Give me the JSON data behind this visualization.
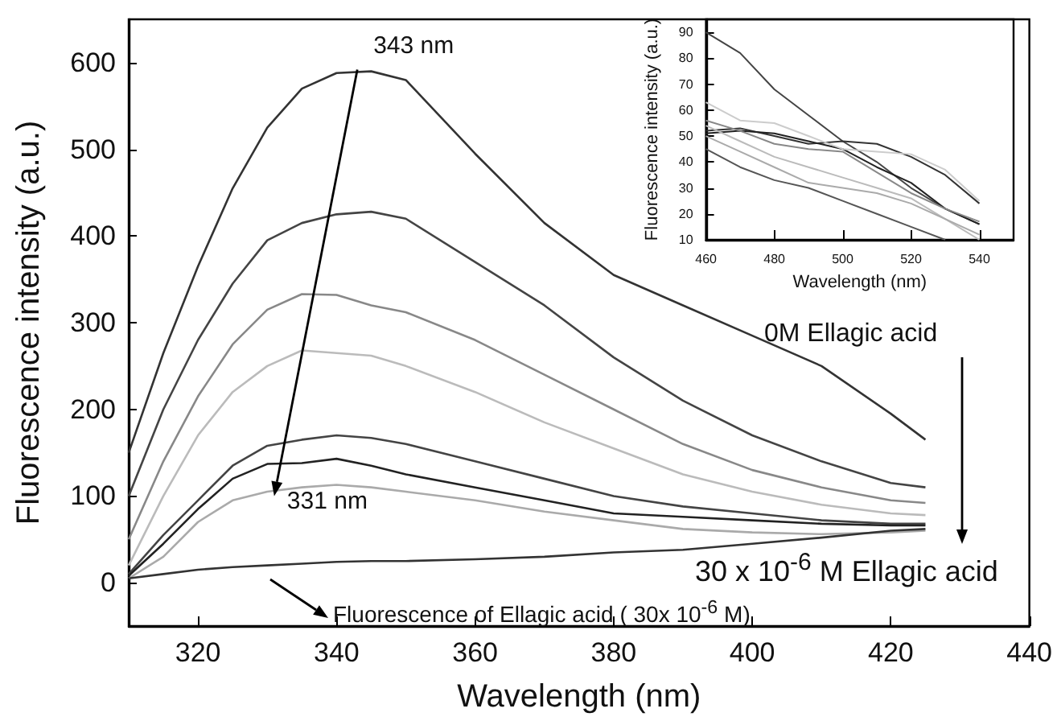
{
  "chart_data": [
    {
      "type": "line",
      "xlabel": "Wavelength (nm)",
      "ylabel": "Fluorescence intensity (a.u.)",
      "x": [
        310,
        315,
        320,
        325,
        330,
        335,
        340,
        345,
        350,
        360,
        370,
        380,
        390,
        400,
        410,
        420,
        425
      ],
      "xlim": [
        310,
        440
      ],
      "xticks": [
        320,
        340,
        360,
        380,
        400,
        420,
        440
      ],
      "ylim": [
        -50,
        650
      ],
      "yticks": [
        0,
        100,
        200,
        300,
        400,
        500,
        600
      ],
      "series": [
        {
          "color": "#333333",
          "values": [
            150,
            265,
            365,
            455,
            525,
            570,
            588,
            590,
            580,
            495,
            415,
            355,
            320,
            285,
            250,
            195,
            165
          ]
        },
        {
          "color": "#444444",
          "values": [
            100,
            200,
            280,
            345,
            395,
            415,
            425,
            428,
            420,
            370,
            320,
            260,
            210,
            170,
            140,
            115,
            110
          ]
        },
        {
          "color": "#888888",
          "values": [
            50,
            140,
            215,
            275,
            315,
            333,
            332,
            320,
            312,
            280,
            240,
            200,
            160,
            130,
            110,
            95,
            92
          ]
        },
        {
          "color": "#bbbbbb",
          "values": [
            20,
            100,
            170,
            220,
            250,
            268,
            265,
            262,
            250,
            220,
            185,
            155,
            125,
            105,
            90,
            80,
            78
          ]
        },
        {
          "color": "#444444",
          "values": [
            10,
            55,
            95,
            135,
            158,
            165,
            170,
            167,
            160,
            140,
            120,
            100,
            88,
            80,
            72,
            68,
            68
          ]
        },
        {
          "color": "#222222",
          "values": [
            8,
            45,
            85,
            120,
            137,
            138,
            143,
            135,
            125,
            110,
            95,
            80,
            76,
            72,
            68,
            66,
            66
          ]
        },
        {
          "color": "#aaaaaa",
          "values": [
            5,
            30,
            70,
            95,
            105,
            110,
            113,
            110,
            105,
            95,
            82,
            72,
            62,
            58,
            56,
            58,
            60
          ]
        },
        {
          "color": "#333333",
          "values": [
            5,
            10,
            15,
            18,
            20,
            22,
            24,
            25,
            25,
            27,
            30,
            35,
            38,
            45,
            52,
            60,
            62
          ]
        }
      ],
      "annotations": [
        {
          "text": "343 nm",
          "x": 343,
          "y": 592
        },
        {
          "text": "331 nm",
          "x": 331,
          "y": 100
        },
        "0M Ellagic acid",
        "30 x 10$^{-6}$ M Ellagic acid",
        "Fluorescence of Ellagic acid ( 30x 10$^{-6}$ M)"
      ]
    },
    {
      "type": "line",
      "xlabel": "Wavelength (nm)",
      "ylabel": "Fluorescence intensity (a.u.)",
      "x": [
        460,
        470,
        480,
        490,
        500,
        510,
        520,
        530,
        540
      ],
      "xlim": [
        460,
        550
      ],
      "xticks": [
        460,
        480,
        500,
        520,
        540
      ],
      "ylim": [
        10,
        95
      ],
      "yticks": [
        10,
        20,
        30,
        40,
        50,
        60,
        70,
        80,
        90
      ],
      "series": [
        {
          "color": "#444444",
          "values": [
            90,
            82,
            68,
            58,
            48,
            40,
            30,
            22,
            16
          ]
        },
        {
          "color": "#333333",
          "values": [
            52,
            53,
            50,
            47,
            48,
            47,
            42,
            35,
            24
          ]
        },
        {
          "color": "#222222",
          "values": [
            51,
            52,
            51,
            48,
            45,
            38,
            32,
            22,
            16
          ]
        },
        {
          "color": "#cccccc",
          "values": [
            63,
            56,
            55,
            50,
            45,
            44,
            43,
            37,
            25
          ]
        },
        {
          "color": "#888888",
          "values": [
            56,
            52,
            47,
            45,
            44,
            36,
            28,
            22,
            17
          ]
        },
        {
          "color": "#bbbbbb",
          "values": [
            54,
            48,
            42,
            38,
            34,
            30,
            26,
            18,
            10
          ]
        },
        {
          "color": "#aaaaaa",
          "values": [
            50,
            44,
            38,
            32,
            30,
            28,
            24,
            18,
            12
          ]
        },
        {
          "color": "#555555",
          "values": [
            45,
            38,
            33,
            30,
            25,
            20,
            15,
            10,
            null
          ]
        }
      ]
    }
  ]
}
